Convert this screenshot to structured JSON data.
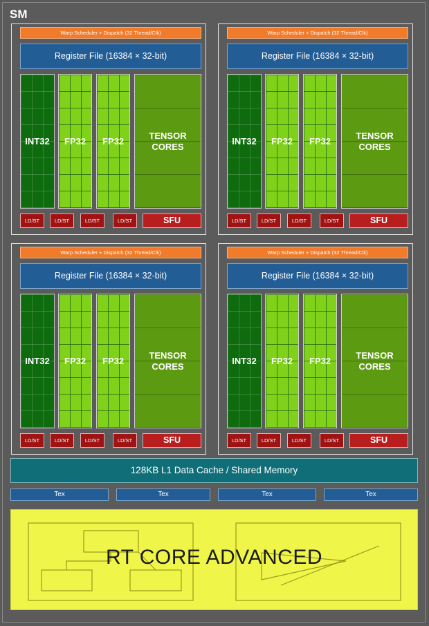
{
  "sm_label": "SM",
  "quadrants": [
    {
      "warp_scheduler": "Warp Scheduler + Dispatch (32 Thread/Clk)",
      "register_file": "Register File (16384 × 32-bit)",
      "int32": "INT32",
      "fp32_a": "FP32",
      "fp32_b": "FP32",
      "tensor_line1": "TENSOR",
      "tensor_line2": "CORES",
      "ldst": [
        "LD/ST",
        "LD/ST",
        "LD/ST",
        "LD/ST"
      ],
      "sfu": "SFU"
    },
    {
      "warp_scheduler": "Warp Scheduler + Dispatch (32 Thread/Clk)",
      "register_file": "Register File (16384 × 32-bit)",
      "int32": "INT32",
      "fp32_a": "FP32",
      "fp32_b": "FP32",
      "tensor_line1": "TENSOR",
      "tensor_line2": "CORES",
      "ldst": [
        "LD/ST",
        "LD/ST",
        "LD/ST",
        "LD/ST"
      ],
      "sfu": "SFU"
    },
    {
      "warp_scheduler": "Warp Scheduler + Dispatch (32 Thread/Clk)",
      "register_file": "Register File (16384 × 32-bit)",
      "int32": "INT32",
      "fp32_a": "FP32",
      "fp32_b": "FP32",
      "tensor_line1": "TENSOR",
      "tensor_line2": "CORES",
      "ldst": [
        "LD/ST",
        "LD/ST",
        "LD/ST",
        "LD/ST"
      ],
      "sfu": "SFU"
    },
    {
      "warp_scheduler": "Warp Scheduler + Dispatch (32 Thread/Clk)",
      "register_file": "Register File (16384 × 32-bit)",
      "int32": "INT32",
      "fp32_a": "FP32",
      "fp32_b": "FP32",
      "tensor_line1": "TENSOR",
      "tensor_line2": "CORES",
      "ldst": [
        "LD/ST",
        "LD/ST",
        "LD/ST",
        "LD/ST"
      ],
      "sfu": "SFU"
    }
  ],
  "l1_cache": "128KB L1 Data Cache / Shared Memory",
  "tex_units": [
    "Tex",
    "Tex",
    "Tex",
    "Tex"
  ],
  "rt_core": "RT CORE ADVANCED",
  "colors": {
    "warp": "#f07b2a",
    "register_file": "#235d95",
    "int32": "#0e6b0e",
    "fp32": "#7fd11a",
    "tensor": "#5c9a12",
    "ldst": "#a01313",
    "sfu": "#b81e1e",
    "l1": "#0f6e77",
    "rt_core": "#f0f54a"
  }
}
